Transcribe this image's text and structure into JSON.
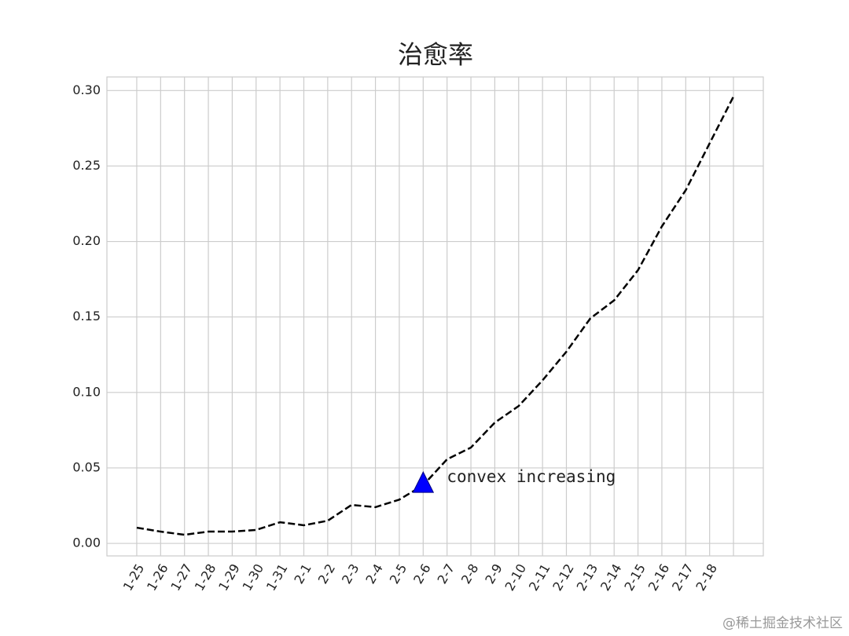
{
  "chart_data": {
    "type": "line",
    "title": "治愈率",
    "categories": [
      "1-25",
      "1-26",
      "1-27",
      "1-28",
      "1-29",
      "1-30",
      "1-31",
      "2-1",
      "2-2",
      "2-3",
      "2-4",
      "2-5",
      "2-6",
      "2-7",
      "2-8",
      "2-9",
      "2-10",
      "2-11",
      "2-12",
      "2-13",
      "2-14",
      "2-15",
      "2-16",
      "2-17",
      "2-18",
      null
    ],
    "series": [
      {
        "color": "#000000",
        "line_style": "dashed",
        "values": [
          0.0104,
          0.0078,
          0.0057,
          0.0078,
          0.0078,
          0.0089,
          0.014,
          0.012,
          0.015,
          0.0255,
          0.024,
          0.029,
          0.0385,
          0.0557,
          0.0635,
          0.08,
          0.091,
          0.108,
          0.127,
          0.149,
          0.161,
          0.181,
          0.21,
          0.234,
          0.265,
          0.296
        ]
      }
    ],
    "ylim": [
      -0.0083,
      0.309
    ],
    "yticks": [
      {
        "value": 0,
        "label": "0.00"
      },
      {
        "value": 0.05,
        "label": "0.05"
      },
      {
        "value": 0.1,
        "label": "0.10"
      },
      {
        "value": 0.15,
        "label": "0.15"
      },
      {
        "value": 0.2,
        "label": "0.20"
      },
      {
        "value": 0.25,
        "label": "0.25"
      },
      {
        "value": 0.3,
        "label": "0.30"
      }
    ],
    "grid": true,
    "annotation": {
      "text": "convex increasing",
      "x": "2-6",
      "y": 0.04,
      "color": "#0000ff"
    },
    "watermark": "@稀土掘金技术社区"
  }
}
